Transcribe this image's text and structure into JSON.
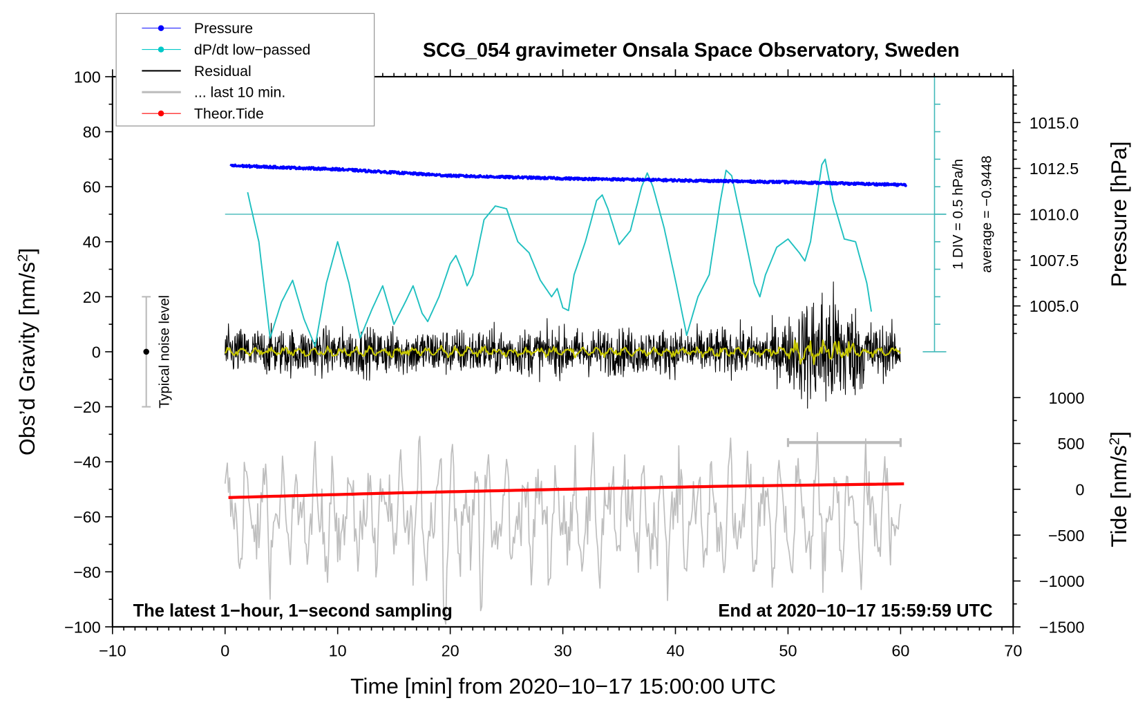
{
  "chart_data": {
    "type": "line",
    "title": "SCG_054 gravimeter Onsala Space Observatory, Sweden",
    "xlabel": "Time [min] from 2020−10−17 15:00:00 UTC",
    "ylabel_left": "Obs’d Gravity [nm/s",
    "ylabel_left_sup": "2",
    "ylabel_left_end": "]",
    "ylabel_right_pressure": "Pressure [hPa]",
    "ylabel_right_tide": "Tide [nm/s",
    "ylabel_right_tide_sup": "2",
    "ylabel_right_tide_end": "]",
    "xlim": [
      -10,
      70
    ],
    "ylim": [
      -100,
      100
    ],
    "xticks": [
      -10,
      0,
      10,
      20,
      30,
      40,
      50,
      60,
      70
    ],
    "xtick_labels": [
      "−10",
      "0",
      "10",
      "20",
      "30",
      "40",
      "50",
      "60",
      "70"
    ],
    "yticks": [
      -100,
      -80,
      -60,
      -40,
      -20,
      0,
      20,
      40,
      60,
      80,
      100
    ],
    "ytick_labels": [
      "−100",
      "−80",
      "−60",
      "−40",
      "−20",
      "0",
      "20",
      "40",
      "60",
      "80",
      "100"
    ],
    "pressure_axis": {
      "ref_value": 1010.0,
      "ref_gravity": 50,
      "hpa_per_gravity_unit": 0.15,
      "ticks": [
        1005.0,
        1007.5,
        1010.0,
        1012.5,
        1015.0
      ],
      "tick_labels": [
        "1005.0",
        "1007.5",
        "1010.0",
        "1012.5",
        "1015.0"
      ]
    },
    "tide_axis": {
      "ref_value": 0,
      "ref_gravity": -50,
      "nms2_per_gravity_unit": 30,
      "ticks": [
        -1500,
        -1000,
        -500,
        0,
        500,
        1000
      ],
      "tick_labels": [
        "−1500",
        "−1000",
        "−500",
        "0",
        "500",
        "1000"
      ]
    },
    "dpdt_axis": {
      "ref_gravity": 50,
      "average": -0.9448,
      "hpa_h_per_div": 0.5,
      "gravity_per_div": 10,
      "label_div": "1 DIV = 0.5 hPa/h",
      "label_avg": "average = −0.9448"
    },
    "legend": {
      "position": "top-left",
      "entries": [
        {
          "name": "Pressure",
          "color": "#0000ff",
          "marker": true
        },
        {
          "name": "dP/dt low−passed",
          "color": "#00c8c8",
          "marker": true
        },
        {
          "name": "Residual",
          "color": "#000000",
          "marker": false
        },
        {
          "name": "... last 10 min.",
          "color": "#bebebe",
          "marker": false
        },
        {
          "name": "Theor.Tide",
          "color": "#ff0000",
          "marker": true
        }
      ]
    },
    "series": [
      {
        "name": "Pressure",
        "units": "hPa",
        "color": "#0000ff",
        "x": [
          0.5,
          10,
          20,
          30,
          40,
          50,
          60.5
        ],
        "y": [
          1012.65,
          1012.45,
          1012.1,
          1011.95,
          1011.85,
          1011.75,
          1011.6
        ]
      },
      {
        "name": "dP/dt low-passed",
        "units": "hPa/h",
        "color": "#20c0c0",
        "x": [
          2,
          3,
          4,
          5,
          6,
          7,
          8,
          9,
          10,
          11,
          12,
          13,
          14,
          15,
          16,
          16.7,
          17.5,
          18,
          19,
          20,
          20.5,
          21,
          21.5,
          22,
          23,
          24,
          25,
          26,
          27,
          28,
          29,
          29.5,
          30,
          30.5,
          31,
          32,
          33,
          33.5,
          34,
          35,
          36,
          37,
          37.5,
          38,
          39,
          40,
          41,
          42,
          43,
          44,
          44.5,
          45,
          46,
          47,
          47.5,
          48,
          49,
          50,
          51,
          51.5,
          52,
          53,
          53.3,
          54,
          55,
          56,
          57,
          57.5
        ],
        "y": [
          -0.545,
          -1.445,
          -3.195,
          -2.545,
          -2.145,
          -2.845,
          -3.345,
          -2.195,
          -1.445,
          -2.195,
          -3.195,
          -2.695,
          -2.245,
          -2.945,
          -2.545,
          -2.245,
          -2.745,
          -2.895,
          -2.445,
          -1.845,
          -1.695,
          -1.945,
          -2.245,
          -2.045,
          -1.045,
          -0.795,
          -0.845,
          -1.445,
          -1.645,
          -2.145,
          -2.445,
          -2.295,
          -2.645,
          -2.695,
          -2.045,
          -1.445,
          -0.695,
          -0.595,
          -0.845,
          -1.495,
          -1.245,
          -0.445,
          -0.195,
          -0.445,
          -1.195,
          -2.145,
          -3.145,
          -2.445,
          -2.045,
          -0.695,
          -0.145,
          -0.245,
          -1.195,
          -2.195,
          -2.445,
          -2.045,
          -1.545,
          -1.395,
          -1.645,
          -1.795,
          -1.445,
          -0.045,
          0.055,
          -0.695,
          -1.395,
          -1.445,
          -2.195,
          -2.845
        ]
      },
      {
        "name": "Residual",
        "units": "nm/s2",
        "color": "#000000",
        "x_range": [
          0,
          60
        ],
        "typical_amplitude": 7,
        "late_amplitude": 20,
        "late_start": 48,
        "max": 37,
        "min": -37
      },
      {
        "name": "Residual low-passed",
        "units": "nm/s2",
        "color": "#c8c800",
        "level": 0
      },
      {
        "name": "... last 10 min.",
        "units": "nm/s2",
        "color": "#bebebe",
        "x_window": [
          50,
          60
        ],
        "offset": -60,
        "amplitude": 12
      },
      {
        "name": "Theor.Tide",
        "units": "nm/s2",
        "color": "#ff0000",
        "x": [
          0.3,
          15,
          30,
          45,
          60.5
        ],
        "y": [
          -90,
          -40,
          0,
          35,
          60
        ]
      }
    ],
    "noise_level": {
      "label": "Typical noise level",
      "x": -7,
      "range": [
        -20,
        20
      ]
    },
    "last10_marker": {
      "x_range": [
        50,
        60
      ],
      "y": -33
    },
    "annotation_left": "The latest 1−hour, 1−second sampling",
    "annotation_right": "End at 2020−10−17 15:59:59 UTC",
    "grid": false
  }
}
